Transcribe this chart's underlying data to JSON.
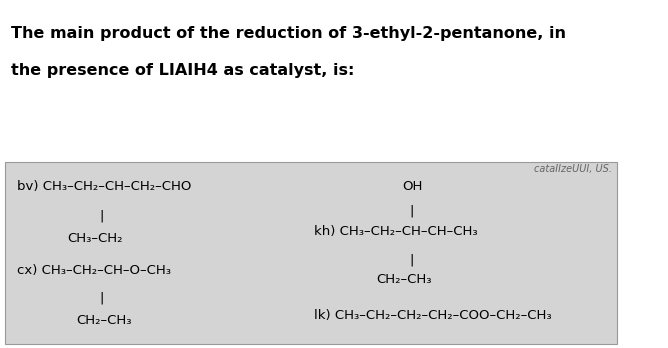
{
  "title_line1": "The main product of the reduction of 3-ethyl-2-pentanone, in",
  "title_line2": "the presence of LIAIH4 as catalyst, is:",
  "title_fontsize": 11.5,
  "title_fontweight": "bold",
  "bg_color": "#ffffff",
  "box_color": "#d4d4d4",
  "box_edge_color": "#999999",
  "option_bv_line1": "bv) CH₃–CH₂–CH–CH₂–CHO",
  "option_bv_branch_bar": "|",
  "option_bv_line2": "CH₃–CH₂",
  "option_cx_line1": "cx) CH₃–CH₂–CH–O–CH₃",
  "option_cx_branch_bar": "|",
  "option_cx_line2": "CH₂–CH₃",
  "option_kh_oh": "OH",
  "option_kh_bar1": "|",
  "option_kh_line1": "kh) CH₃–CH₂–CH–CH–CH₃",
  "option_kh_bar2": "|",
  "option_kh_line2": "CH₂–CH₃",
  "option_lk": "lk) CH₃–CH₂–CH₂–CH₂–COO–CH₂–CH₃",
  "watermark": "cataIIzeUUI, US.",
  "font_size_options": 9.5,
  "font_family": "DejaVu Sans"
}
